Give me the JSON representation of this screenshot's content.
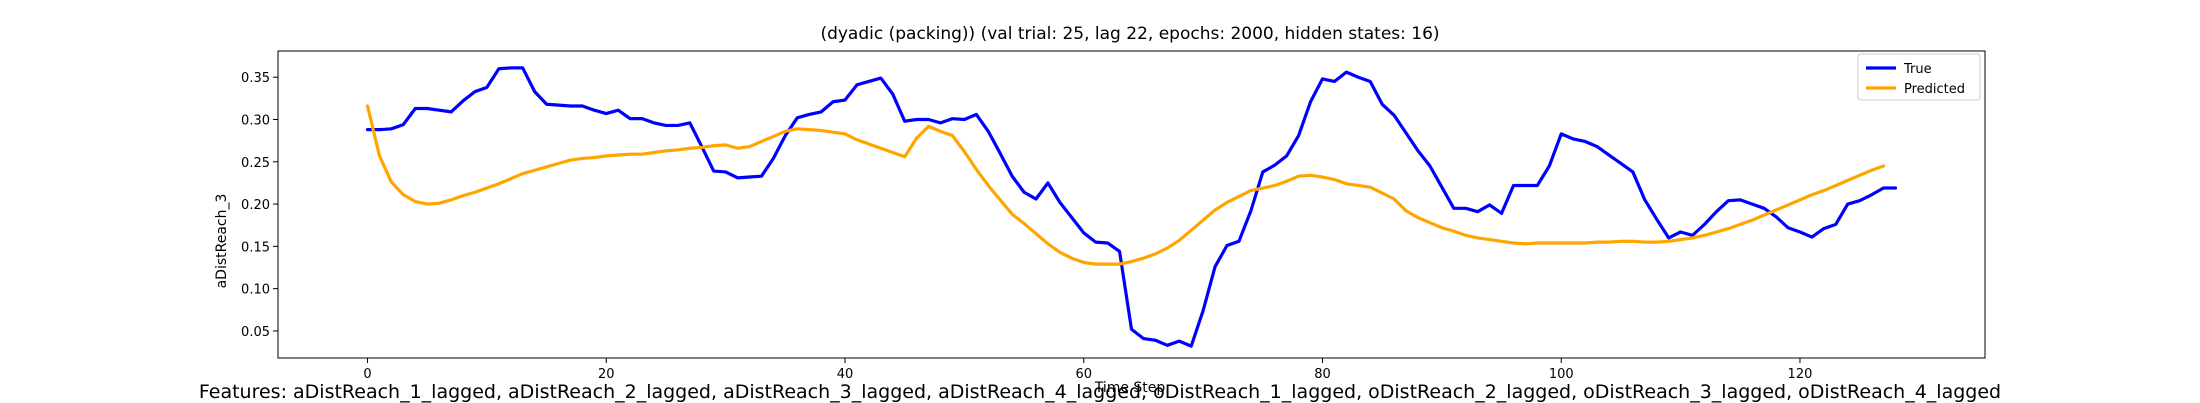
{
  "chart_data": {
    "type": "line",
    "title": "(dyadic (packing)) (val trial: 25, lag 22, epochs: 2000, hidden states: 16)",
    "xlabel": "Time Step",
    "ylabel": "aDistReach_3",
    "xlim": [
      -7.5,
      135.5
    ],
    "ylim": [
      0.018,
      0.381
    ],
    "x_ticks": [
      0,
      20,
      40,
      60,
      80,
      100,
      120
    ],
    "y_ticks": [
      0.05,
      0.1,
      0.15,
      0.2,
      0.25,
      0.3,
      0.35
    ],
    "x_tick_labels": [
      "0",
      "20",
      "40",
      "60",
      "80",
      "100",
      "120"
    ],
    "y_tick_labels": [
      "0.05",
      "0.10",
      "0.15",
      "0.20",
      "0.25",
      "0.30",
      "0.35"
    ],
    "grid": false,
    "legend_position": "top-right",
    "series": [
      {
        "name": "True",
        "color": "#0000ff",
        "values": [
          0.288,
          0.288,
          0.289,
          0.294,
          0.313,
          0.313,
          0.311,
          0.309,
          0.322,
          0.333,
          0.338,
          0.36,
          0.361,
          0.361,
          0.333,
          0.318,
          0.317,
          0.316,
          0.316,
          0.311,
          0.307,
          0.311,
          0.301,
          0.301,
          0.296,
          0.293,
          0.293,
          0.296,
          0.268,
          0.239,
          0.238,
          0.231,
          0.232,
          0.233,
          0.254,
          0.281,
          0.302,
          0.306,
          0.309,
          0.321,
          0.323,
          0.341,
          0.345,
          0.349,
          0.33,
          0.298,
          0.3,
          0.3,
          0.296,
          0.301,
          0.3,
          0.306,
          0.286,
          0.26,
          0.233,
          0.214,
          0.206,
          0.225,
          0.202,
          0.184,
          0.166,
          0.155,
          0.154,
          0.144,
          0.052,
          0.041,
          0.039,
          0.033,
          0.038,
          0.032,
          0.074,
          0.126,
          0.151,
          0.156,
          0.192,
          0.238,
          0.246,
          0.257,
          0.281,
          0.321,
          0.348,
          0.345,
          0.356,
          0.35,
          0.345,
          0.318,
          0.305,
          0.284,
          0.263,
          0.245,
          0.22,
          0.195,
          0.195,
          0.191,
          0.199,
          0.189,
          0.222,
          0.222,
          0.222,
          0.245,
          0.283,
          0.277,
          0.274,
          0.268,
          0.258,
          0.248,
          0.238,
          0.205,
          0.182,
          0.16,
          0.167,
          0.163,
          0.176,
          0.191,
          0.204,
          0.205,
          0.2,
          0.195,
          0.185,
          0.172,
          0.167,
          0.161,
          0.171,
          0.176,
          0.2,
          0.204,
          0.211,
          0.219,
          0.219
        ]
      },
      {
        "name": "Predicted",
        "color": "#ffa500",
        "values": [
          0.316,
          0.257,
          0.226,
          0.211,
          0.203,
          0.2,
          0.201,
          0.205,
          0.21,
          0.214,
          0.219,
          0.224,
          0.23,
          0.236,
          0.24,
          0.244,
          0.248,
          0.252,
          0.254,
          0.255,
          0.257,
          0.258,
          0.259,
          0.259,
          0.261,
          0.263,
          0.264,
          0.266,
          0.267,
          0.269,
          0.27,
          0.266,
          0.268,
          0.274,
          0.28,
          0.286,
          0.289,
          0.288,
          0.287,
          0.285,
          0.283,
          0.276,
          0.271,
          0.266,
          0.261,
          0.256,
          0.278,
          0.292,
          0.286,
          0.281,
          0.262,
          0.241,
          0.222,
          0.205,
          0.188,
          0.177,
          0.165,
          0.153,
          0.143,
          0.136,
          0.131,
          0.129,
          0.129,
          0.129,
          0.132,
          0.136,
          0.141,
          0.148,
          0.157,
          0.169,
          0.181,
          0.193,
          0.202,
          0.209,
          0.216,
          0.219,
          0.222,
          0.227,
          0.233,
          0.234,
          0.232,
          0.229,
          0.224,
          0.222,
          0.22,
          0.213,
          0.206,
          0.192,
          0.184,
          0.178,
          0.172,
          0.168,
          0.163,
          0.16,
          0.158,
          0.156,
          0.154,
          0.153,
          0.154,
          0.154,
          0.154,
          0.154,
          0.154,
          0.155,
          0.155,
          0.156,
          0.156,
          0.155,
          0.155,
          0.156,
          0.158,
          0.16,
          0.163,
          0.167,
          0.171,
          0.176,
          0.181,
          0.187,
          0.193,
          0.199,
          0.205,
          0.211,
          0.216,
          0.222,
          0.228,
          0.234,
          0.24,
          0.245
        ]
      }
    ]
  },
  "footer_text": "Features: aDistReach_1_lagged, aDistReach_2_lagged, aDistReach_3_lagged, aDistReach_4_lagged, oDistReach_1_lagged, oDistReach_2_lagged, oDistReach_3_lagged, oDistReach_4_lagged"
}
